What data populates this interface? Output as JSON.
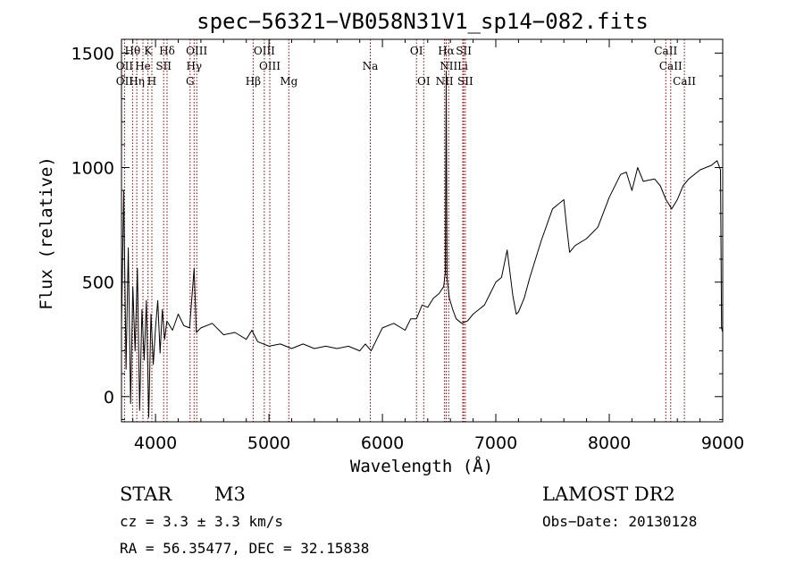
{
  "chart_data": {
    "type": "line",
    "title": "spec−56321−VB058N31V1_sp14−082.fits",
    "xlabel": "Wavelength (Å)",
    "ylabel": "Flux (relative)",
    "xlim": [
      3700,
      9000
    ],
    "ylim": [
      -110,
      1560
    ],
    "xticks": [
      4000,
      5000,
      6000,
      7000,
      8000,
      9000
    ],
    "yticks": [
      0,
      500,
      1000,
      1500
    ],
    "grid": false,
    "line_color": "#000000",
    "marker_color": "#8b0000",
    "spectrum": {
      "x": [
        3700,
        3720,
        3740,
        3760,
        3780,
        3800,
        3820,
        3840,
        3860,
        3880,
        3900,
        3920,
        3940,
        3960,
        3980,
        4000,
        4020,
        4040,
        4060,
        4080,
        4100,
        4150,
        4200,
        4250,
        4300,
        4340,
        4360,
        4400,
        4500,
        4600,
        4700,
        4800,
        4850,
        4900,
        5000,
        5100,
        5200,
        5300,
        5400,
        5500,
        5600,
        5700,
        5800,
        5850,
        5900,
        5950,
        6000,
        6100,
        6200,
        6250,
        6300,
        6350,
        6400,
        6450,
        6500,
        6540,
        6555,
        6563,
        6570,
        6590,
        6620,
        6650,
        6700,
        6750,
        6800,
        6850,
        6900,
        6950,
        7000,
        7050,
        7100,
        7150,
        7180,
        7200,
        7250,
        7300,
        7400,
        7500,
        7550,
        7600,
        7620,
        7650,
        7700,
        7800,
        7900,
        8000,
        8100,
        8150,
        8200,
        8250,
        8300,
        8400,
        8450,
        8500,
        8550,
        8600,
        8650,
        8700,
        8800,
        8900,
        8950,
        8980,
        8990,
        9000
      ],
      "y": [
        300,
        900,
        120,
        650,
        -30,
        480,
        200,
        560,
        -60,
        380,
        160,
        420,
        -90,
        360,
        140,
        300,
        420,
        190,
        380,
        250,
        330,
        290,
        360,
        310,
        300,
        560,
        280,
        300,
        320,
        270,
        280,
        250,
        290,
        240,
        220,
        230,
        210,
        230,
        210,
        220,
        210,
        220,
        200,
        230,
        200,
        250,
        300,
        320,
        290,
        340,
        340,
        400,
        390,
        430,
        450,
        480,
        540,
        1420,
        520,
        430,
        380,
        340,
        320,
        330,
        360,
        380,
        400,
        450,
        500,
        520,
        640,
        440,
        360,
        370,
        430,
        520,
        680,
        820,
        840,
        860,
        760,
        630,
        660,
        690,
        740,
        870,
        970,
        980,
        900,
        1000,
        940,
        950,
        920,
        860,
        820,
        860,
        920,
        950,
        990,
        1010,
        1030,
        990,
        300,
        280
      ]
    },
    "line_labels": [
      {
        "label": "Hθ",
        "row": 0,
        "x": 3798
      },
      {
        "label": "K",
        "row": 0,
        "x": 3934
      },
      {
        "label": "Hδ",
        "row": 0,
        "x": 4102
      },
      {
        "label": "OIII",
        "row": 0,
        "x": 4363
      },
      {
        "label": "OIII",
        "row": 0,
        "x": 4959
      },
      {
        "label": "OI",
        "row": 0,
        "x": 6300
      },
      {
        "label": "Hα",
        "row": 0,
        "x": 6563
      },
      {
        "label": "SII",
        "row": 0,
        "x": 6717
      },
      {
        "label": "CaII",
        "row": 0,
        "x": 8498
      },
      {
        "label": "OII",
        "row": 1,
        "x": 3727
      },
      {
        "label": "He",
        "row": 1,
        "x": 3889
      },
      {
        "label": "SII",
        "row": 1,
        "x": 4072
      },
      {
        "label": "Hγ",
        "row": 1,
        "x": 4340
      },
      {
        "label": "OIII",
        "row": 1,
        "x": 5007
      },
      {
        "label": "Na",
        "row": 1,
        "x": 5893
      },
      {
        "label": "NII",
        "row": 1,
        "x": 6584
      },
      {
        "label": "Li",
        "row": 1,
        "x": 6708
      },
      {
        "label": "CaII",
        "row": 1,
        "x": 8542
      },
      {
        "label": "OII",
        "row": 2,
        "x": 3727
      },
      {
        "label": "Hη",
        "row": 2,
        "x": 3835
      },
      {
        "label": "H",
        "row": 2,
        "x": 3968
      },
      {
        "label": "G",
        "row": 2,
        "x": 4305
      },
      {
        "label": "Hβ",
        "row": 2,
        "x": 4861
      },
      {
        "label": "Mg",
        "row": 2,
        "x": 5175
      },
      {
        "label": "OI",
        "row": 2,
        "x": 6364
      },
      {
        "label": "NII",
        "row": 2,
        "x": 6548
      },
      {
        "label": "SII",
        "row": 2,
        "x": 6731
      },
      {
        "label": "CaII",
        "row": 2,
        "x": 8662
      }
    ],
    "marker_lines": [
      3727,
      3798,
      3835,
      3889,
      3934,
      3968,
      4072,
      4102,
      4305,
      4340,
      4363,
      4861,
      4959,
      5007,
      5175,
      5893,
      6300,
      6364,
      6548,
      6563,
      6584,
      6708,
      6717,
      6731,
      8498,
      8542,
      8662
    ]
  },
  "info": {
    "object_class": "STAR",
    "subclass": "M3",
    "survey": "LAMOST DR2",
    "redshift": "cz = 3.3 ± 3.3 km/s",
    "obs_date": "Obs−Date: 20130128",
    "coords": "RA =  56.35477, DEC =  32.15838"
  }
}
